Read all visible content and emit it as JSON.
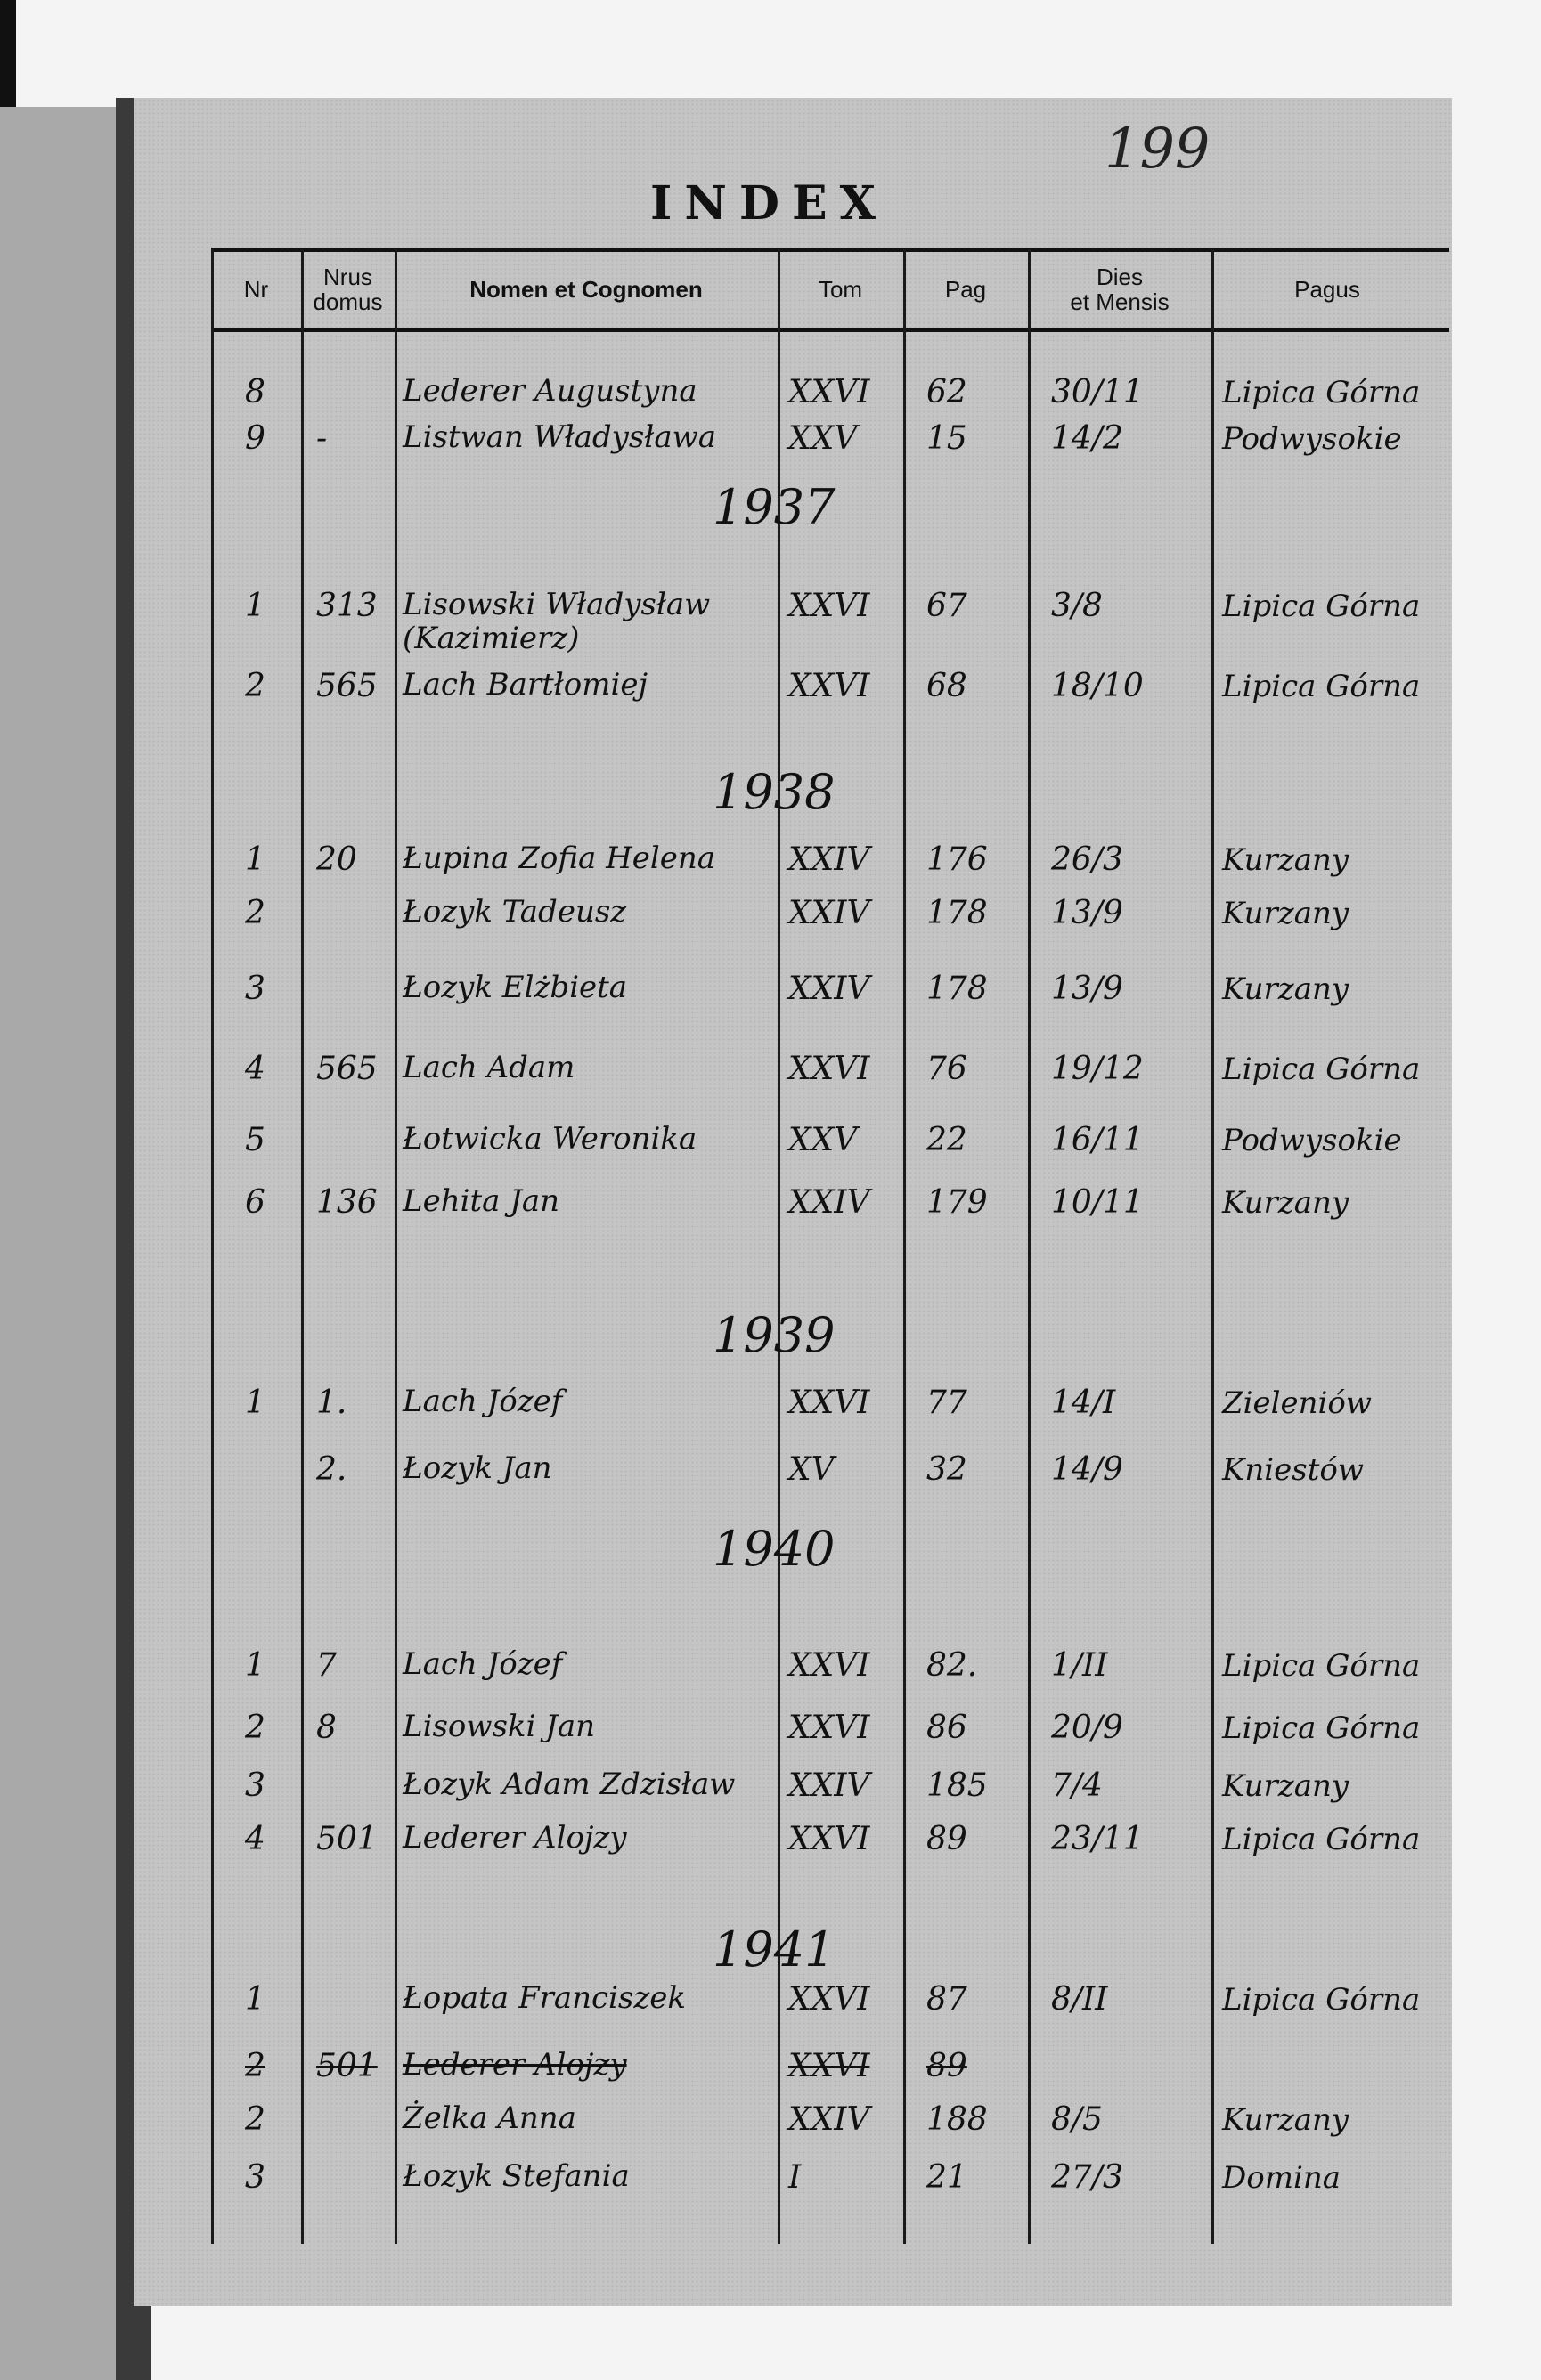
{
  "page_number": "199",
  "title": "INDEX",
  "columns": {
    "nr": "Nr",
    "domus_1": "Nrus",
    "domus_2": "domus",
    "nomen": "Nomen et Cognomen",
    "tom": "Tom",
    "pag": "Pag",
    "dies_1": "Dies",
    "dies_2": "et Mensis",
    "pagus": "Pagus"
  },
  "entries": [
    {
      "nr": "8",
      "domus": "",
      "nomen": "Lederer Augustyna",
      "tom": "XXVI",
      "pag": "62",
      "dies": "30/11",
      "pagus": "Lipica Górna"
    },
    {
      "nr": "9",
      "domus": "-",
      "nomen": "Listwan Władysława",
      "tom": "XXV",
      "pag": "15",
      "dies": "14/2",
      "pagus": "Podwysokie"
    },
    {
      "year": "1937"
    },
    {
      "nr": "1",
      "domus": "313",
      "nomen": "Lisowski Władysław (Kazimierz)",
      "tom": "XXVI",
      "pag": "67",
      "dies": "3/8",
      "pagus": "Lipica Górna"
    },
    {
      "nr": "2",
      "domus": "565",
      "nomen": "Lach Bartłomiej",
      "tom": "XXVI",
      "pag": "68",
      "dies": "18/10",
      "pagus": "Lipica Górna"
    },
    {
      "year": "1938"
    },
    {
      "nr": "1",
      "domus": "20",
      "nomen": "Łupina Zofia Helena",
      "tom": "XXIV",
      "pag": "176",
      "dies": "26/3",
      "pagus": "Kurzany"
    },
    {
      "nr": "2",
      "domus": "",
      "nomen": "Łozyk Tadeusz",
      "tom": "XXIV",
      "pag": "178",
      "dies": "13/9",
      "pagus": "Kurzany"
    },
    {
      "nr": "3",
      "domus": "",
      "nomen": "Łozyk Elżbieta",
      "tom": "XXIV",
      "pag": "178",
      "dies": "13/9",
      "pagus": "Kurzany"
    },
    {
      "nr": "4",
      "domus": "565",
      "nomen": "Lach Adam",
      "tom": "XXVI",
      "pag": "76",
      "dies": "19/12",
      "pagus": "Lipica Górna"
    },
    {
      "nr": "5",
      "domus": "",
      "nomen": "Łotwicka Weronika",
      "tom": "XXV",
      "pag": "22",
      "dies": "16/11",
      "pagus": "Podwysokie"
    },
    {
      "nr": "6",
      "domus": "136",
      "nomen": "Lehita Jan",
      "tom": "XXIV",
      "pag": "179",
      "dies": "10/11",
      "pagus": "Kurzany"
    },
    {
      "year": "1939"
    },
    {
      "nr": "1",
      "domus": "1.",
      "nomen": "Lach Józef",
      "tom": "XXVI",
      "pag": "77",
      "dies": "14/I",
      "pagus": "Zieleniów"
    },
    {
      "nr": "",
      "domus": "2.",
      "nomen": "Łozyk Jan",
      "tom": "XV",
      "pag": "32",
      "dies": "14/9",
      "pagus": "Kniestów"
    },
    {
      "year": "1940"
    },
    {
      "nr": "1",
      "domus": "7",
      "nomen": "Lach Józef",
      "tom": "XXVI",
      "pag": "82.",
      "dies": "1/II",
      "pagus": "Lipica Górna"
    },
    {
      "nr": "2",
      "domus": "8",
      "nomen": "Lisowski Jan",
      "tom": "XXVI",
      "pag": "86",
      "dies": "20/9",
      "pagus": "Lipica Górna"
    },
    {
      "nr": "3",
      "domus": "",
      "nomen": "Łozyk Adam Zdzisław",
      "tom": "XXIV",
      "pag": "185",
      "dies": "7/4",
      "pagus": "Kurzany"
    },
    {
      "nr": "4",
      "domus": "501",
      "nomen": "Lederer Alojzy",
      "tom": "XXVI",
      "pag": "89",
      "dies": "23/11",
      "pagus": "Lipica Górna"
    },
    {
      "year": "1941"
    },
    {
      "nr": "1",
      "domus": "",
      "nomen": "Łopata Franciszek",
      "tom": "XXVI",
      "pag": "87",
      "dies": "8/II",
      "pagus": "Lipica Górna"
    },
    {
      "nr": "2",
      "domus": "501",
      "nomen": "Lederer Alojzy",
      "tom": "XXVI",
      "pag": "89",
      "dies": "",
      "pagus": "",
      "struck": true
    },
    {
      "nr": "2",
      "domus": "",
      "nomen": "Żelka Anna",
      "tom": "XXIV",
      "pag": "188",
      "dies": "8/5",
      "pagus": "Kurzany"
    },
    {
      "nr": "3",
      "domus": "",
      "nomen": "Łozyk Stefania",
      "tom": "I",
      "pag": "21",
      "dies": "27/3",
      "pagus": "Domina"
    }
  ]
}
